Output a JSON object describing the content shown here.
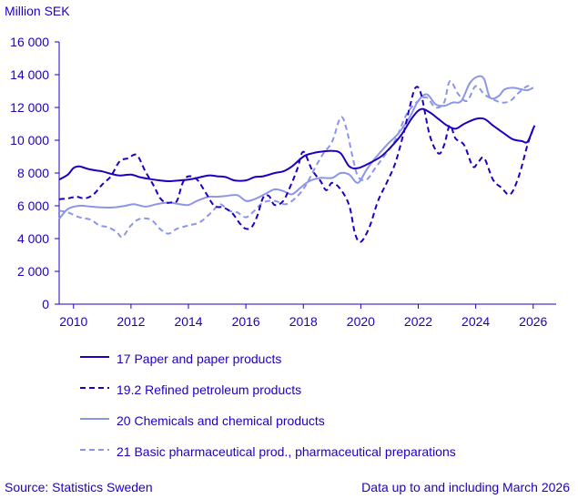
{
  "chart_data": {
    "type": "line",
    "ylabel": "Million SEK",
    "ylim": [
      0,
      16000
    ],
    "yticks": [
      0,
      2000,
      4000,
      6000,
      8000,
      10000,
      12000,
      14000,
      16000
    ],
    "ytick_labels": [
      "0",
      "2 000",
      "4 000",
      "6 000",
      "8 000",
      "10 000",
      "12 000",
      "14 000",
      "16 000"
    ],
    "xlim": [
      2009.5,
      2026.8
    ],
    "xticks": [
      2010,
      2012,
      2014,
      2016,
      2018,
      2020,
      2022,
      2024,
      2026
    ],
    "xtick_labels": [
      "2010",
      "2012",
      "2014",
      "2016",
      "2018",
      "2020",
      "2022",
      "2024",
      "2026"
    ],
    "grid": false,
    "legend_position": "bottom",
    "series": [
      {
        "name": "17 Paper and paper products",
        "color": "#1e00be",
        "dash": "solid",
        "width": 2,
        "points": [
          [
            2009.5,
            7600
          ],
          [
            2009.8,
            7900
          ],
          [
            2010.0,
            8300
          ],
          [
            2010.2,
            8400
          ],
          [
            2010.5,
            8250
          ],
          [
            2010.8,
            8150
          ],
          [
            2011.0,
            8100
          ],
          [
            2011.3,
            7950
          ],
          [
            2011.6,
            7850
          ],
          [
            2012.0,
            7900
          ],
          [
            2012.3,
            7750
          ],
          [
            2012.6,
            7650
          ],
          [
            2013.0,
            7550
          ],
          [
            2013.3,
            7500
          ],
          [
            2013.7,
            7550
          ],
          [
            2014.0,
            7600
          ],
          [
            2014.3,
            7700
          ],
          [
            2014.7,
            7850
          ],
          [
            2015.0,
            7800
          ],
          [
            2015.3,
            7750
          ],
          [
            2015.6,
            7550
          ],
          [
            2016.0,
            7550
          ],
          [
            2016.3,
            7750
          ],
          [
            2016.6,
            7800
          ],
          [
            2017.0,
            8000
          ],
          [
            2017.3,
            8100
          ],
          [
            2017.6,
            8400
          ],
          [
            2018.0,
            9000
          ],
          [
            2018.3,
            9200
          ],
          [
            2018.6,
            9300
          ],
          [
            2019.0,
            9350
          ],
          [
            2019.3,
            9200
          ],
          [
            2019.6,
            8400
          ],
          [
            2019.9,
            8300
          ],
          [
            2020.3,
            8600
          ],
          [
            2020.7,
            9000
          ],
          [
            2021.0,
            9500
          ],
          [
            2021.4,
            10300
          ],
          [
            2021.8,
            11400
          ],
          [
            2022.1,
            11900
          ],
          [
            2022.4,
            11700
          ],
          [
            2022.7,
            11300
          ],
          [
            2023.0,
            10900
          ],
          [
            2023.3,
            10700
          ],
          [
            2023.6,
            11000
          ],
          [
            2024.0,
            11300
          ],
          [
            2024.3,
            11300
          ],
          [
            2024.6,
            10900
          ],
          [
            2025.0,
            10400
          ],
          [
            2025.3,
            10050
          ],
          [
            2025.6,
            9950
          ],
          [
            2025.8,
            9900
          ],
          [
            2026.0,
            10700
          ],
          [
            2026.05,
            10900
          ]
        ]
      },
      {
        "name": "19.2 Refined petroleum products",
        "color": "#1e00be",
        "dash": "dashed",
        "width": 2,
        "points": [
          [
            2009.5,
            6400
          ],
          [
            2009.8,
            6450
          ],
          [
            2010.1,
            6550
          ],
          [
            2010.4,
            6450
          ],
          [
            2010.7,
            6700
          ],
          [
            2011.0,
            7300
          ],
          [
            2011.3,
            7800
          ],
          [
            2011.6,
            8700
          ],
          [
            2011.9,
            8900
          ],
          [
            2012.2,
            9100
          ],
          [
            2012.5,
            8100
          ],
          [
            2012.8,
            7200
          ],
          [
            2013.0,
            6500
          ],
          [
            2013.2,
            6200
          ],
          [
            2013.4,
            6200
          ],
          [
            2013.6,
            6300
          ],
          [
            2013.8,
            7400
          ],
          [
            2014.0,
            7800
          ],
          [
            2014.3,
            7600
          ],
          [
            2014.6,
            6800
          ],
          [
            2014.9,
            6000
          ],
          [
            2015.2,
            5900
          ],
          [
            2015.5,
            5600
          ],
          [
            2015.8,
            4900
          ],
          [
            2016.0,
            4600
          ],
          [
            2016.2,
            4700
          ],
          [
            2016.4,
            5400
          ],
          [
            2016.6,
            6500
          ],
          [
            2016.8,
            6600
          ],
          [
            2017.0,
            6050
          ],
          [
            2017.3,
            6300
          ],
          [
            2017.6,
            7400
          ],
          [
            2017.8,
            8300
          ],
          [
            2018.0,
            9300
          ],
          [
            2018.3,
            8200
          ],
          [
            2018.6,
            7500
          ],
          [
            2018.8,
            6950
          ],
          [
            2019.0,
            7400
          ],
          [
            2019.3,
            7000
          ],
          [
            2019.6,
            6000
          ],
          [
            2019.8,
            4300
          ],
          [
            2020.0,
            3800
          ],
          [
            2020.3,
            4700
          ],
          [
            2020.6,
            6300
          ],
          [
            2020.9,
            7400
          ],
          [
            2021.2,
            8600
          ],
          [
            2021.5,
            10500
          ],
          [
            2021.7,
            12000
          ],
          [
            2021.9,
            13200
          ],
          [
            2022.1,
            12800
          ],
          [
            2022.4,
            10300
          ],
          [
            2022.7,
            9200
          ],
          [
            2022.9,
            9700
          ],
          [
            2023.1,
            10900
          ],
          [
            2023.3,
            10100
          ],
          [
            2023.6,
            9700
          ],
          [
            2023.9,
            8400
          ],
          [
            2024.1,
            8700
          ],
          [
            2024.3,
            8900
          ],
          [
            2024.6,
            7600
          ],
          [
            2024.9,
            7100
          ],
          [
            2025.2,
            6700
          ],
          [
            2025.5,
            7800
          ],
          [
            2025.8,
            9700
          ],
          [
            2026.0,
            10700
          ]
        ]
      },
      {
        "name": "20 Chemicals and chemical products",
        "color": "#8c96e6",
        "dash": "solid",
        "width": 2,
        "points": [
          [
            2009.5,
            5200
          ],
          [
            2009.8,
            5800
          ],
          [
            2010.2,
            6000
          ],
          [
            2010.6,
            5950
          ],
          [
            2011.0,
            5900
          ],
          [
            2011.4,
            5900
          ],
          [
            2011.8,
            6000
          ],
          [
            2012.1,
            6100
          ],
          [
            2012.5,
            5950
          ],
          [
            2012.9,
            6100
          ],
          [
            2013.3,
            6200
          ],
          [
            2013.7,
            6100
          ],
          [
            2014.0,
            6050
          ],
          [
            2014.3,
            6300
          ],
          [
            2014.7,
            6550
          ],
          [
            2015.0,
            6550
          ],
          [
            2015.3,
            6600
          ],
          [
            2015.7,
            6650
          ],
          [
            2016.0,
            6300
          ],
          [
            2016.3,
            6400
          ],
          [
            2016.7,
            6750
          ],
          [
            2017.0,
            7000
          ],
          [
            2017.3,
            6900
          ],
          [
            2017.6,
            6700
          ],
          [
            2017.9,
            7100
          ],
          [
            2018.2,
            7500
          ],
          [
            2018.6,
            7700
          ],
          [
            2019.0,
            7700
          ],
          [
            2019.3,
            8000
          ],
          [
            2019.6,
            7900
          ],
          [
            2019.9,
            7400
          ],
          [
            2020.2,
            8200
          ],
          [
            2020.5,
            8900
          ],
          [
            2020.9,
            9700
          ],
          [
            2021.3,
            10400
          ],
          [
            2021.7,
            11400
          ],
          [
            2022.0,
            12400
          ],
          [
            2022.3,
            12800
          ],
          [
            2022.6,
            12200
          ],
          [
            2022.9,
            12100
          ],
          [
            2023.2,
            12300
          ],
          [
            2023.5,
            12400
          ],
          [
            2023.8,
            13500
          ],
          [
            2024.1,
            13900
          ],
          [
            2024.3,
            13700
          ],
          [
            2024.5,
            12600
          ],
          [
            2024.8,
            12700
          ],
          [
            2025.0,
            13100
          ],
          [
            2025.3,
            13200
          ],
          [
            2025.6,
            13100
          ],
          [
            2025.8,
            13050
          ],
          [
            2026.0,
            13200
          ]
        ]
      },
      {
        "name": "21 Basic pharmaceutical prod., pharmaceutical preparations",
        "color": "#8c96e6",
        "dash": "dashed",
        "width": 2,
        "points": [
          [
            2009.5,
            5700
          ],
          [
            2009.8,
            5600
          ],
          [
            2010.2,
            5300
          ],
          [
            2010.6,
            5150
          ],
          [
            2010.9,
            4800
          ],
          [
            2011.2,
            4700
          ],
          [
            2011.5,
            4400
          ],
          [
            2011.7,
            4100
          ],
          [
            2012.0,
            4800
          ],
          [
            2012.3,
            5200
          ],
          [
            2012.7,
            5150
          ],
          [
            2013.0,
            4600
          ],
          [
            2013.3,
            4300
          ],
          [
            2013.6,
            4600
          ],
          [
            2014.0,
            4800
          ],
          [
            2014.4,
            5000
          ],
          [
            2014.8,
            5600
          ],
          [
            2015.1,
            6100
          ],
          [
            2015.4,
            5700
          ],
          [
            2015.7,
            5600
          ],
          [
            2016.0,
            5300
          ],
          [
            2016.3,
            5700
          ],
          [
            2016.6,
            6200
          ],
          [
            2017.0,
            6300
          ],
          [
            2017.4,
            6100
          ],
          [
            2017.8,
            6600
          ],
          [
            2018.1,
            7300
          ],
          [
            2018.4,
            8300
          ],
          [
            2018.7,
            9200
          ],
          [
            2019.0,
            9900
          ],
          [
            2019.3,
            11400
          ],
          [
            2019.5,
            10700
          ],
          [
            2019.7,
            9100
          ],
          [
            2019.9,
            7800
          ],
          [
            2020.2,
            7600
          ],
          [
            2020.5,
            8300
          ],
          [
            2020.8,
            9000
          ],
          [
            2021.2,
            10000
          ],
          [
            2021.6,
            11600
          ],
          [
            2022.0,
            12400
          ],
          [
            2022.3,
            12600
          ],
          [
            2022.6,
            12000
          ],
          [
            2022.9,
            12300
          ],
          [
            2023.1,
            13600
          ],
          [
            2023.4,
            12800
          ],
          [
            2023.7,
            12400
          ],
          [
            2024.0,
            13300
          ],
          [
            2024.3,
            12800
          ],
          [
            2024.6,
            12500
          ],
          [
            2024.9,
            12300
          ],
          [
            2025.2,
            12400
          ],
          [
            2025.5,
            12900
          ],
          [
            2025.8,
            13300
          ],
          [
            2026.0,
            13200
          ]
        ]
      }
    ]
  },
  "footer": {
    "source": "Source: Statistics Sweden",
    "note": "Data up to and including March 2026"
  }
}
